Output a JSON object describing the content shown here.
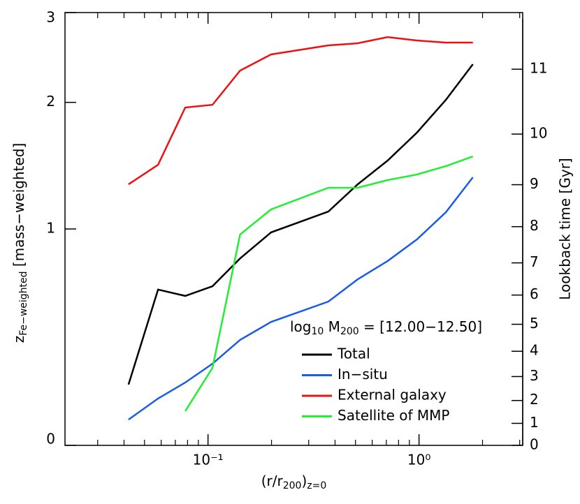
{
  "chart_data": {
    "type": "line",
    "x_label": [
      "(r/r",
      "200",
      ")",
      "z=0"
    ],
    "y_label": [
      "z",
      "Fe−weighted",
      " [mass−weighted]"
    ],
    "y2_label": "Lookback time [Gyr]",
    "legend_title": [
      "log",
      "10",
      " M",
      "200",
      " = [12.00−12.50]"
    ],
    "x": [
      0.042,
      0.058,
      0.078,
      0.105,
      0.142,
      0.199,
      0.372,
      0.512,
      0.71,
      0.977,
      1.34,
      1.8
    ],
    "series": [
      {
        "name": "Total",
        "color": "#000000",
        "values": [
          0.215,
          0.647,
          0.614,
          0.665,
          0.82,
          0.978,
          1.115,
          1.307,
          1.49,
          1.723,
          2.024,
          2.39
        ]
      },
      {
        "name": "In−situ",
        "color": "#1a5ce6",
        "values": [
          0.086,
          0.162,
          0.223,
          0.299,
          0.402,
          0.485,
          0.585,
          0.702,
          0.805,
          0.934,
          1.11,
          1.36
        ]
      },
      {
        "name": "External galaxy",
        "color": "#ee1111",
        "values": [
          1.307,
          1.457,
          1.951,
          1.977,
          2.322,
          2.498,
          2.601,
          2.625,
          2.698,
          2.658,
          2.633,
          2.633
        ]
      },
      {
        "name": "Satellite of MMP",
        "color": "#22ee33",
        "values": [
          null,
          null,
          0.116,
          0.282,
          0.965,
          1.129,
          1.282,
          1.282,
          1.339,
          1.381,
          1.446,
          1.523
        ]
      }
    ],
    "xscale": "log",
    "xlim": [
      0.021,
      3.1
    ],
    "xticks": [
      {
        "value": 0.1,
        "label": "10⁻¹"
      },
      {
        "value": 1,
        "label": "10⁰"
      }
    ],
    "xminorticks": [
      0.03,
      0.04,
      0.05,
      0.06,
      0.07,
      0.08,
      0.09,
      0.2,
      0.3,
      0.4,
      0.5,
      0.6,
      0.7,
      0.8,
      0.9,
      2,
      3
    ],
    "yscale": "log1p",
    "ylim": [
      0,
      3
    ],
    "yticks": [
      0,
      1,
      2,
      3
    ],
    "y2scale": "lookback",
    "y2lim": [
      0,
      11.6
    ],
    "y2ticks": [
      0,
      1,
      2,
      3,
      4,
      5,
      6,
      7,
      8,
      9,
      10,
      11
    ],
    "legend": "lower right"
  }
}
